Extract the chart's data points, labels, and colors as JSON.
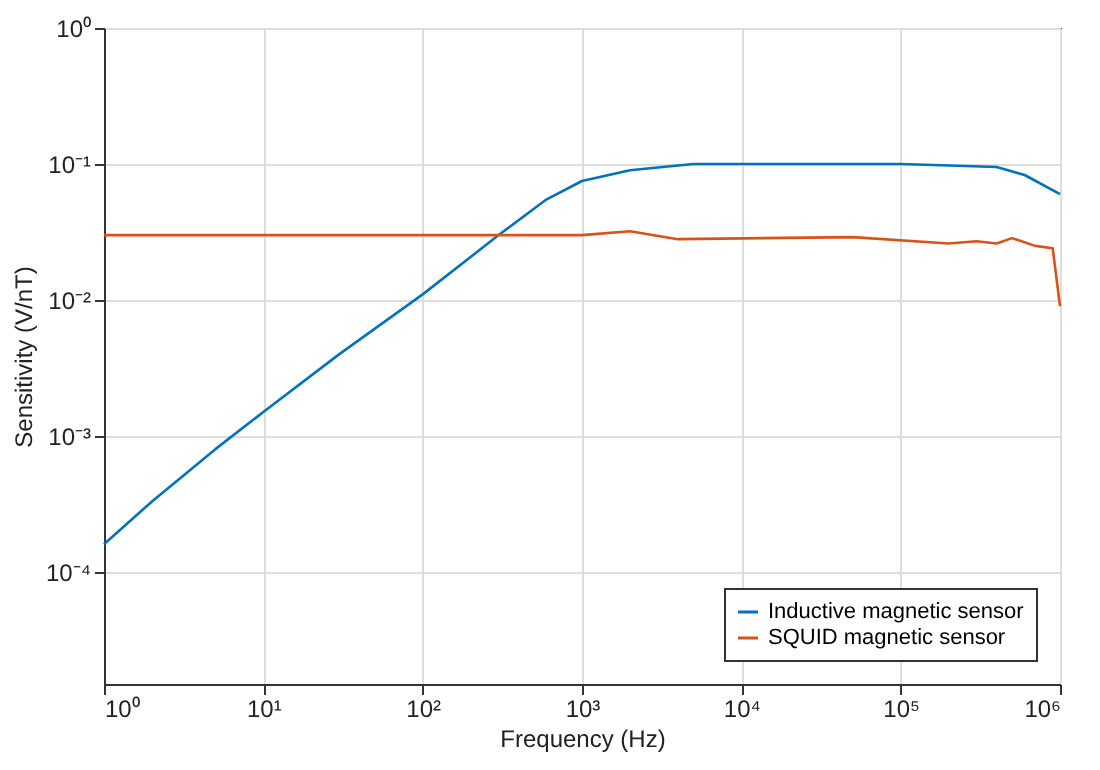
{
  "chart_data": {
    "type": "line",
    "xlabel": "Frequency (Hz)",
    "ylabel": "Sensitivity (V/nT)",
    "log": "xy",
    "grid": true,
    "legend": "bottom right",
    "line_style": "solid",
    "marker": "none",
    "xlim": [
      1,
      1000000
    ],
    "ylim": [
      1.5e-05,
      1
    ],
    "xticks": [
      {
        "value": 1,
        "label": "10⁰"
      },
      {
        "value": 10,
        "label": "10¹"
      },
      {
        "value": 100,
        "label": "10²"
      },
      {
        "value": 1000,
        "label": "10³"
      },
      {
        "value": 10000,
        "label": "10⁴"
      },
      {
        "value": 100000,
        "label": "10⁵"
      },
      {
        "value": 1000000,
        "label": "10⁶"
      }
    ],
    "yticks": [
      {
        "value": 0.0001,
        "label": "10⁻⁴"
      },
      {
        "value": 0.001,
        "label": "10⁻³"
      },
      {
        "value": 0.01,
        "label": "10⁻²"
      },
      {
        "value": 0.1,
        "label": "10⁻¹"
      },
      {
        "value": 1,
        "label": "10⁰"
      }
    ],
    "series": [
      {
        "name": "Inductive magnetic sensor",
        "color": "#0072bd",
        "x": [
          1,
          2,
          5,
          10,
          30,
          100,
          300,
          600,
          1000,
          2000,
          5000,
          10000,
          100000,
          400000,
          600000,
          1000000
        ],
        "values": [
          0.00016,
          0.00033,
          0.0008,
          0.0015,
          0.004,
          0.011,
          0.03,
          0.055,
          0.075,
          0.09,
          0.1,
          0.1,
          0.1,
          0.095,
          0.083,
          0.06
        ]
      },
      {
        "name": "SQUID magnetic sensor",
        "color": "#d95319",
        "x": [
          1,
          1000,
          2000,
          4000,
          50000,
          200000,
          300000,
          400000,
          500000,
          700000,
          900000,
          1000000
        ],
        "values": [
          0.03,
          0.03,
          0.032,
          0.028,
          0.029,
          0.026,
          0.027,
          0.026,
          0.0285,
          0.025,
          0.024,
          0.009
        ]
      }
    ]
  }
}
